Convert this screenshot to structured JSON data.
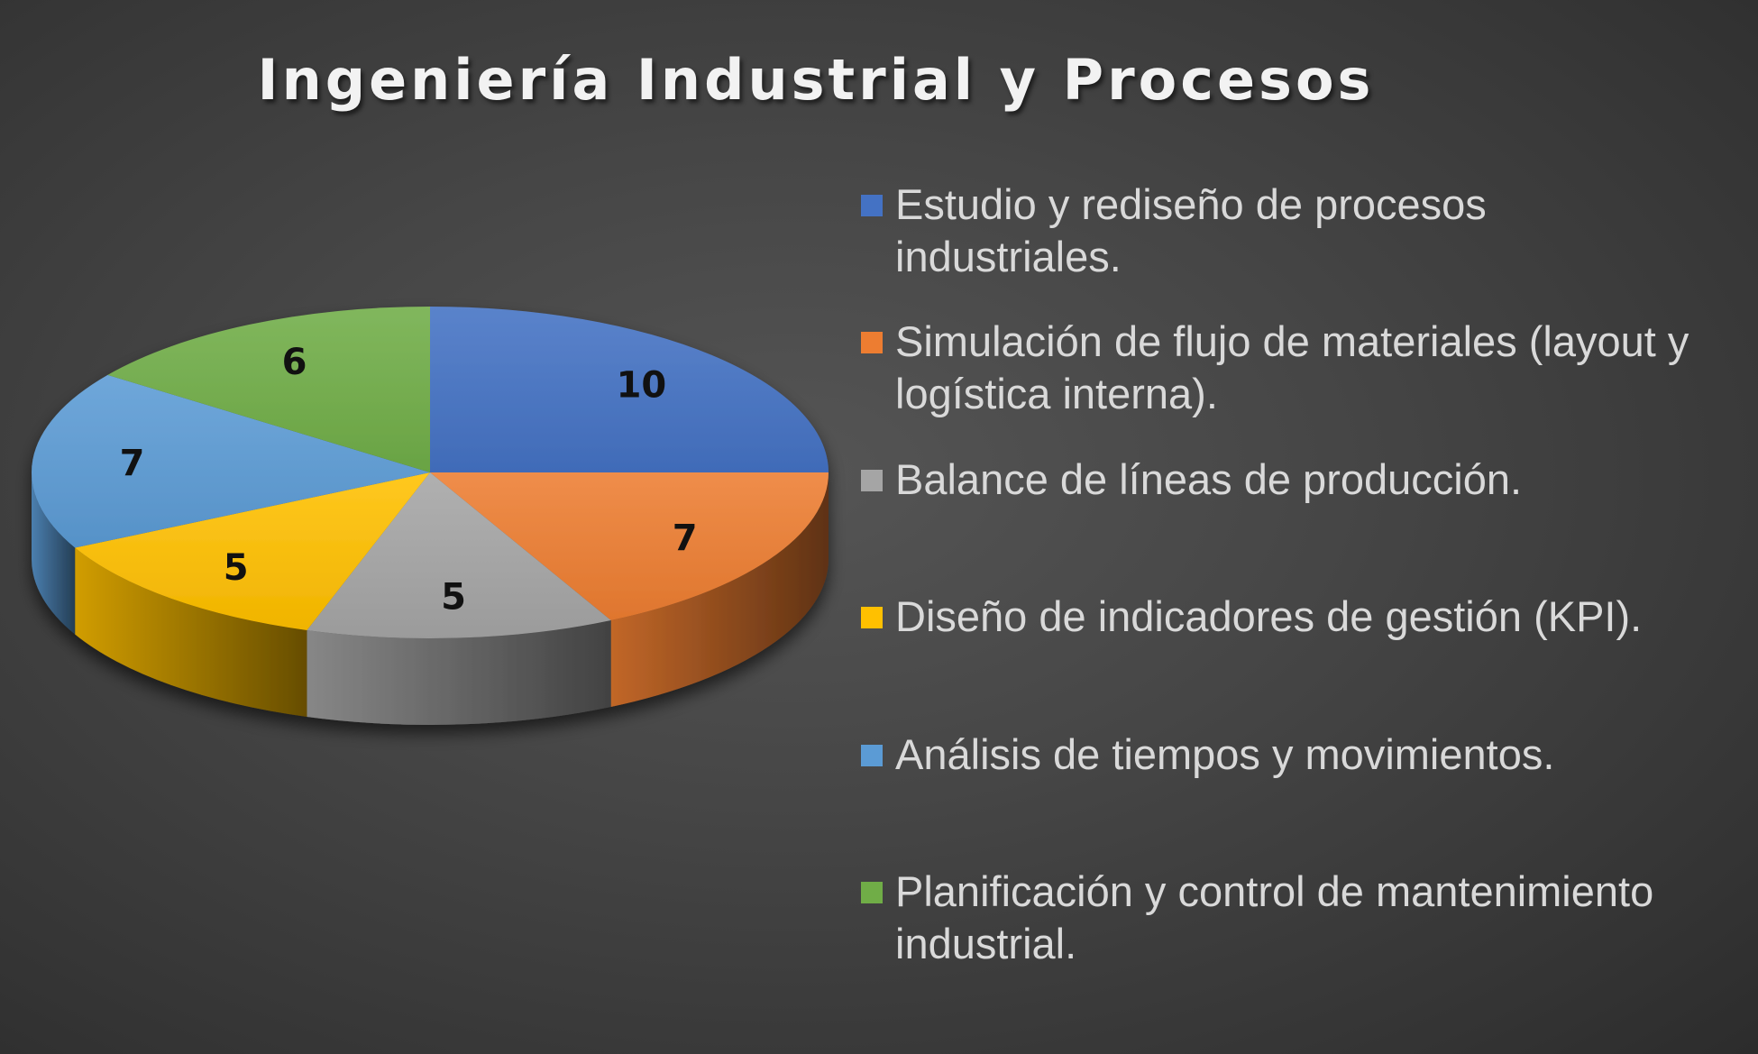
{
  "chart_data": {
    "type": "pie",
    "title": "Ingeniería Industrial y Procesos",
    "categories": [
      "Estudio y rediseño de procesos industriales.",
      "Simulación de flujo de materiales (layout y logística interna).",
      "Balance de líneas de producción.",
      "Diseño de indicadores de gestión (KPI).",
      "Análisis de tiempos y movimientos.",
      "Planificación y control de mantenimiento industrial."
    ],
    "values": [
      10,
      7,
      5,
      5,
      7,
      6
    ],
    "colors": [
      "#4472C4",
      "#ED7D31",
      "#A5A5A5",
      "#FFC000",
      "#5B9BD5",
      "#70AD47"
    ],
    "style": "3d-pie",
    "legend_position": "right",
    "data_labels": true
  }
}
